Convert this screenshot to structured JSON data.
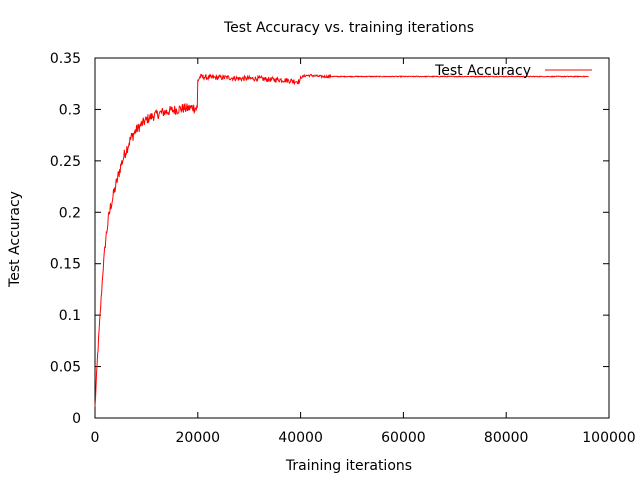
{
  "chart_data": {
    "type": "line",
    "title": "Test Accuracy vs. training iterations",
    "xlabel": "Training iterations",
    "ylabel": "Test Accuracy",
    "xlim": [
      0,
      100000
    ],
    "ylim": [
      0,
      0.35
    ],
    "x_ticks": [
      0,
      20000,
      40000,
      60000,
      80000,
      100000
    ],
    "x_tick_labels": [
      "0",
      "20000",
      "40000",
      "60000",
      "80000",
      "100000"
    ],
    "y_ticks": [
      0,
      0.05,
      0.1,
      0.15,
      0.2,
      0.25,
      0.3,
      0.35
    ],
    "y_tick_labels": [
      "0",
      "0.05",
      "0.1",
      "0.15",
      "0.2",
      "0.25",
      "0.3",
      "0.35"
    ],
    "grid": false,
    "legend_position": "top-right",
    "series": [
      {
        "name": "Test Accuracy",
        "color": "#ff0000",
        "x": [
          0,
          500,
          1000,
          1500,
          2000,
          2500,
          3000,
          4000,
          5000,
          6000,
          7000,
          8000,
          9000,
          10000,
          11000,
          12000,
          13000,
          14000,
          15000,
          16000,
          17000,
          18000,
          19000,
          19900,
          20000,
          20500,
          22000,
          24000,
          26000,
          28000,
          30000,
          32000,
          34000,
          36000,
          38000,
          39900,
          40000,
          41000,
          42000,
          44000,
          46000,
          50000,
          55000,
          60000,
          65000,
          70000,
          75000,
          80000,
          85000,
          90000,
          95000,
          100000
        ],
        "y": [
          0.01,
          0.06,
          0.1,
          0.14,
          0.17,
          0.19,
          0.205,
          0.225,
          0.245,
          0.26,
          0.272,
          0.28,
          0.285,
          0.29,
          0.293,
          0.295,
          0.297,
          0.298,
          0.299,
          0.3,
          0.301,
          0.301,
          0.302,
          0.301,
          0.328,
          0.332,
          0.331,
          0.331,
          0.331,
          0.33,
          0.33,
          0.33,
          0.329,
          0.329,
          0.328,
          0.327,
          0.331,
          0.333,
          0.333,
          0.332,
          0.332,
          0.332,
          0.332,
          0.332,
          0.332,
          0.332,
          0.332,
          0.332,
          0.332,
          0.332,
          0.332,
          0.332
        ]
      }
    ]
  }
}
